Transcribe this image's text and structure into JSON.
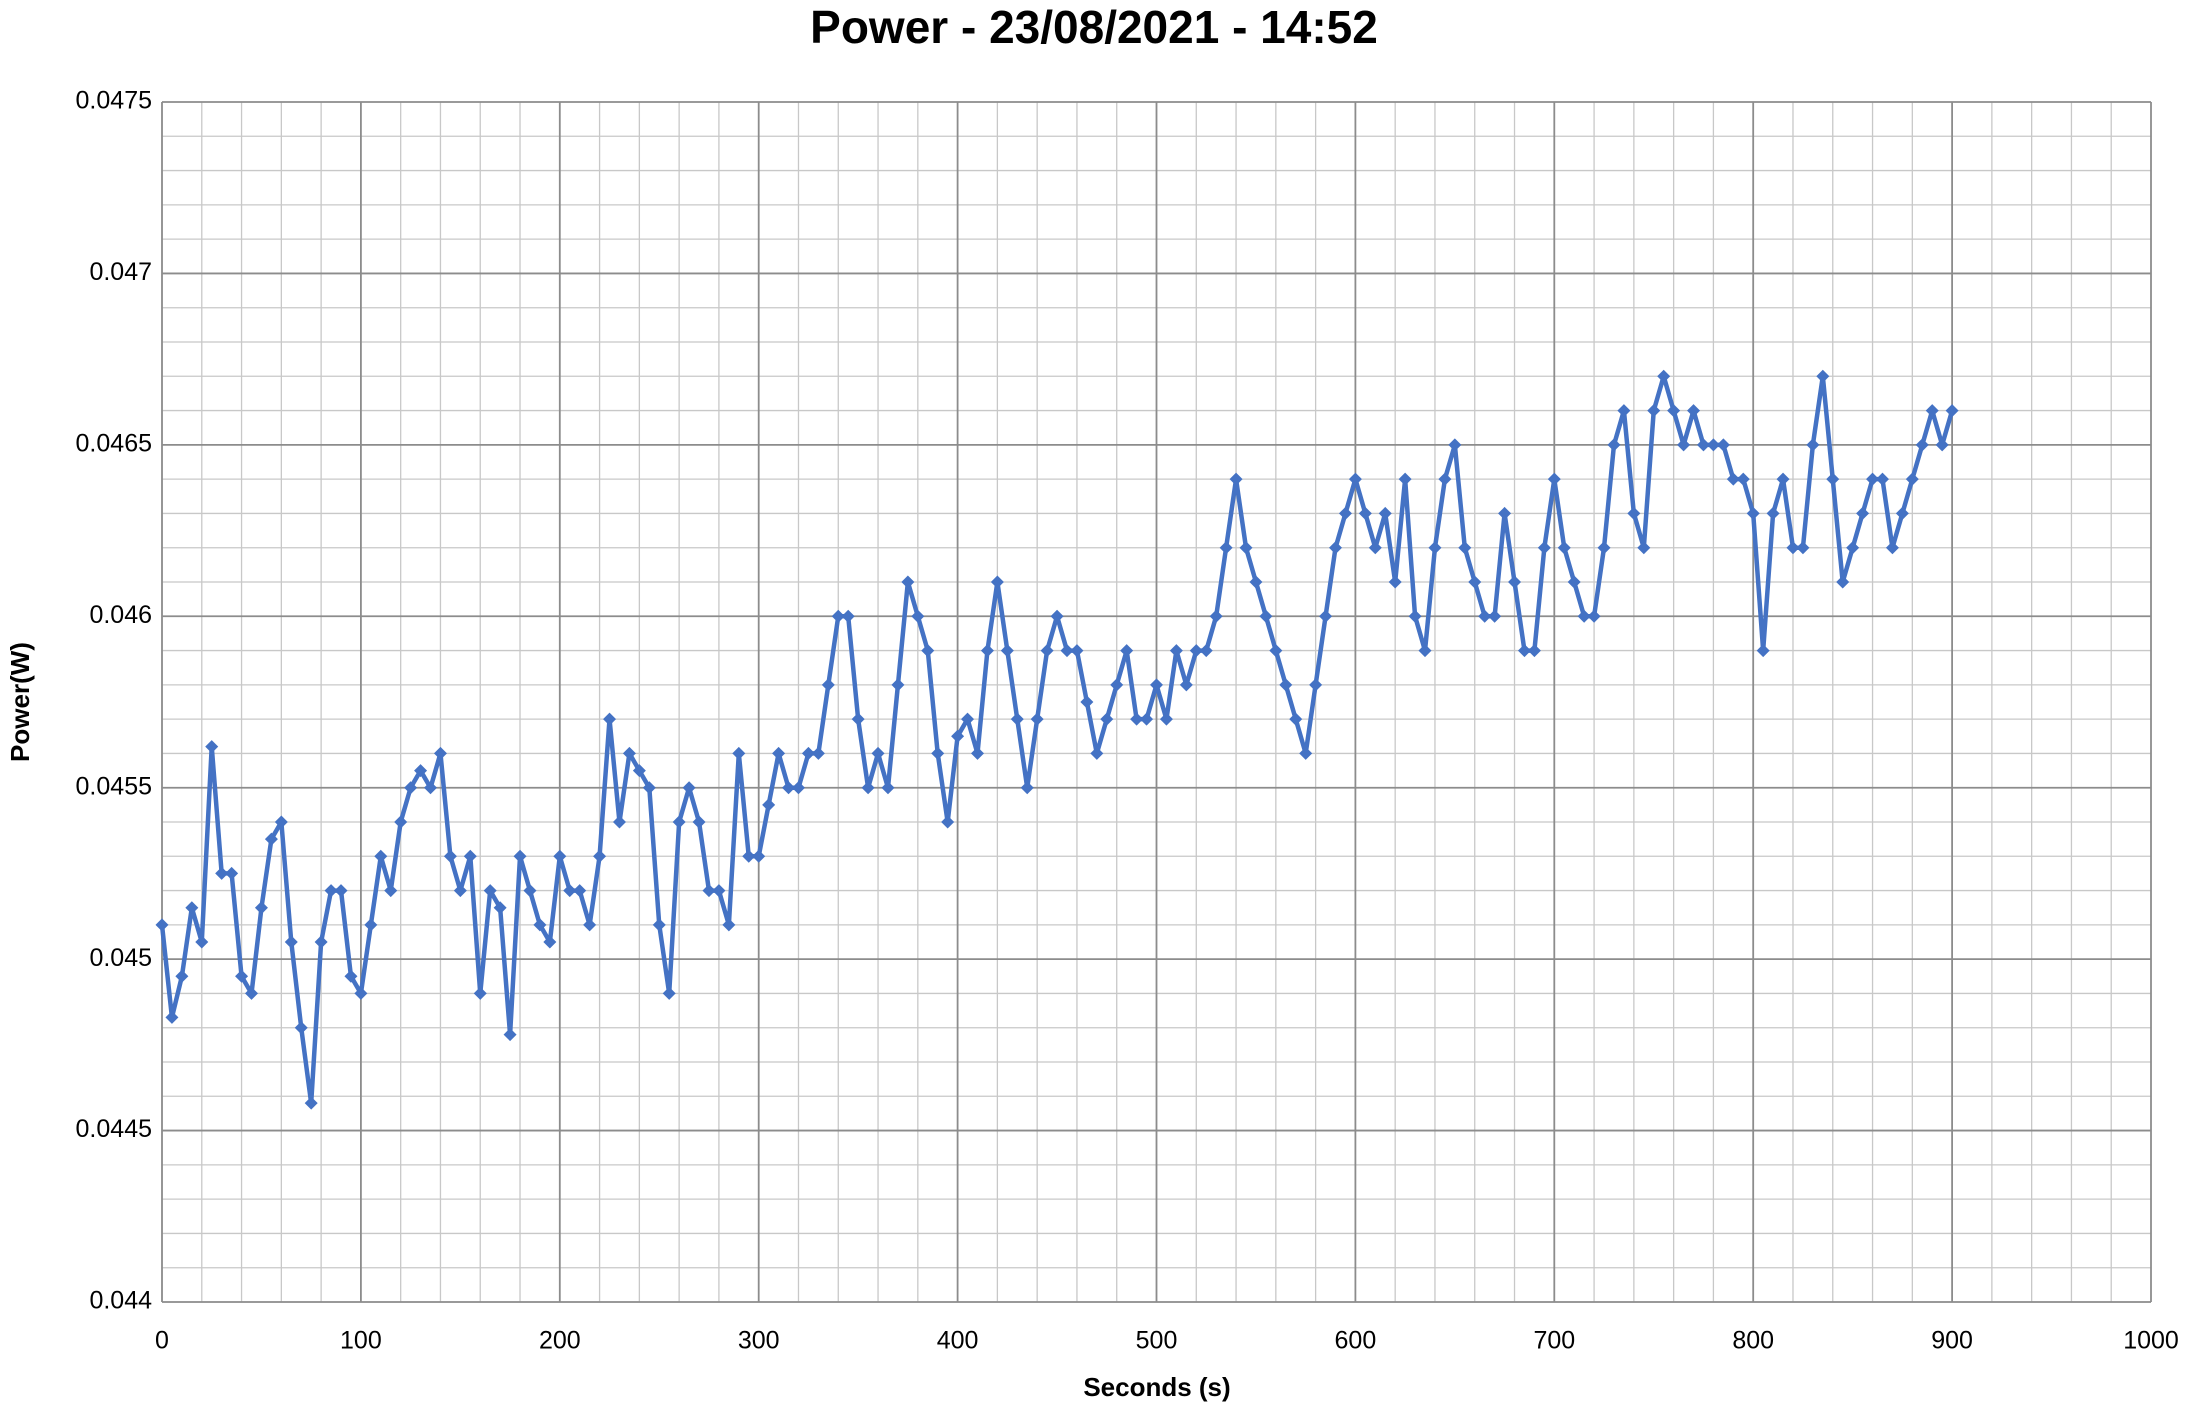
{
  "chart_data": {
    "type": "line",
    "title": "Power - 23/08/2021 - 14:52",
    "xlabel": "Seconds (s)",
    "ylabel": "Power(W)",
    "xlim": [
      0,
      1000
    ],
    "xticks": [
      0,
      100,
      200,
      300,
      400,
      500,
      600,
      700,
      800,
      900,
      1000
    ],
    "ylim": [
      0.044,
      0.0475
    ],
    "yticks": [
      0.044,
      0.0445,
      0.045,
      0.0455,
      0.046,
      0.0465,
      0.047,
      0.0475
    ],
    "grid": true,
    "minor_grid": {
      "x": 20,
      "y": 0.0001
    },
    "x": [
      0,
      5,
      10,
      15,
      20,
      25,
      30,
      35,
      40,
      45,
      50,
      55,
      60,
      65,
      70,
      75,
      80,
      85,
      90,
      95,
      100,
      105,
      110,
      115,
      120,
      125,
      130,
      135,
      140,
      145,
      150,
      155,
      160,
      165,
      170,
      175,
      180,
      185,
      190,
      195,
      200,
      205,
      210,
      215,
      220,
      225,
      230,
      235,
      240,
      245,
      250,
      255,
      260,
      265,
      270,
      275,
      280,
      285,
      290,
      295,
      300,
      305,
      310,
      315,
      320,
      325,
      330,
      335,
      340,
      345,
      350,
      355,
      360,
      365,
      370,
      375,
      380,
      385,
      390,
      395,
      400,
      405,
      410,
      415,
      420,
      425,
      430,
      435,
      440,
      445,
      450,
      455,
      460,
      465,
      470,
      475,
      480,
      485,
      490,
      495,
      500,
      505,
      510,
      515,
      520,
      525,
      530,
      535,
      540,
      545,
      550,
      555,
      560,
      565,
      570,
      575,
      580,
      585,
      590,
      595,
      600,
      605,
      610,
      615,
      620,
      625,
      630,
      635,
      640,
      645,
      650,
      655,
      660,
      665,
      670,
      675,
      680,
      685,
      690,
      695,
      700,
      705,
      710,
      715,
      720,
      725,
      730,
      735,
      740,
      745,
      750,
      755,
      760,
      765,
      770,
      775,
      780,
      785,
      790,
      795,
      800,
      805,
      810,
      815,
      820,
      825,
      830,
      835,
      840,
      845,
      850,
      855,
      860,
      865,
      870,
      875,
      880,
      885,
      890,
      895,
      900
    ],
    "series": [
      {
        "name": "Power",
        "color": "#4472c4",
        "values": [
          0.0451,
          0.04483,
          0.04495,
          0.04515,
          0.04505,
          0.04562,
          0.04525,
          0.04525,
          0.04495,
          0.0449,
          0.04515,
          0.04535,
          0.0454,
          0.04505,
          0.0448,
          0.04458,
          0.04505,
          0.0452,
          0.0452,
          0.04495,
          0.0449,
          0.0451,
          0.0453,
          0.0452,
          0.0454,
          0.0455,
          0.04555,
          0.0455,
          0.0456,
          0.0453,
          0.0452,
          0.0453,
          0.0449,
          0.0452,
          0.04515,
          0.04478,
          0.0453,
          0.0452,
          0.0451,
          0.04505,
          0.0453,
          0.0452,
          0.0452,
          0.0451,
          0.0453,
          0.0457,
          0.0454,
          0.0456,
          0.04555,
          0.0455,
          0.0451,
          0.0449,
          0.0454,
          0.0455,
          0.0454,
          0.0452,
          0.0452,
          0.0451,
          0.0456,
          0.0453,
          0.0453,
          0.04545,
          0.0456,
          0.0455,
          0.0455,
          0.0456,
          0.0456,
          0.0458,
          0.046,
          0.046,
          0.0457,
          0.0455,
          0.0456,
          0.0455,
          0.0458,
          0.0461,
          0.046,
          0.0459,
          0.0456,
          0.0454,
          0.04565,
          0.0457,
          0.0456,
          0.0459,
          0.0461,
          0.0459,
          0.0457,
          0.0455,
          0.0457,
          0.0459,
          0.046,
          0.0459,
          0.0459,
          0.04575,
          0.0456,
          0.0457,
          0.0458,
          0.0459,
          0.0457,
          0.0457,
          0.0458,
          0.0457,
          0.0459,
          0.0458,
          0.0459,
          0.0459,
          0.046,
          0.0462,
          0.0464,
          0.0462,
          0.0461,
          0.046,
          0.0459,
          0.0458,
          0.0457,
          0.0456,
          0.0458,
          0.046,
          0.0462,
          0.0463,
          0.0464,
          0.0463,
          0.0462,
          0.0463,
          0.0461,
          0.0464,
          0.046,
          0.0459,
          0.0462,
          0.0464,
          0.0465,
          0.0462,
          0.0461,
          0.046,
          0.046,
          0.0463,
          0.0461,
          0.0459,
          0.0459,
          0.0462,
          0.0464,
          0.0462,
          0.0461,
          0.046,
          0.046,
          0.0462,
          0.0465,
          0.0466,
          0.0463,
          0.0462,
          0.0466,
          0.0467,
          0.0466,
          0.0465,
          0.0466,
          0.0465,
          0.0465,
          0.0465,
          0.0464,
          0.0464,
          0.0463,
          0.0459,
          0.0463,
          0.0464,
          0.0462,
          0.0462,
          0.0465,
          0.0467,
          0.0464,
          0.0461,
          0.0462,
          0.0463,
          0.0464,
          0.0464,
          0.0462,
          0.0463,
          0.0464,
          0.0465,
          0.0466,
          0.0465,
          0.0466
        ]
      }
    ]
  }
}
